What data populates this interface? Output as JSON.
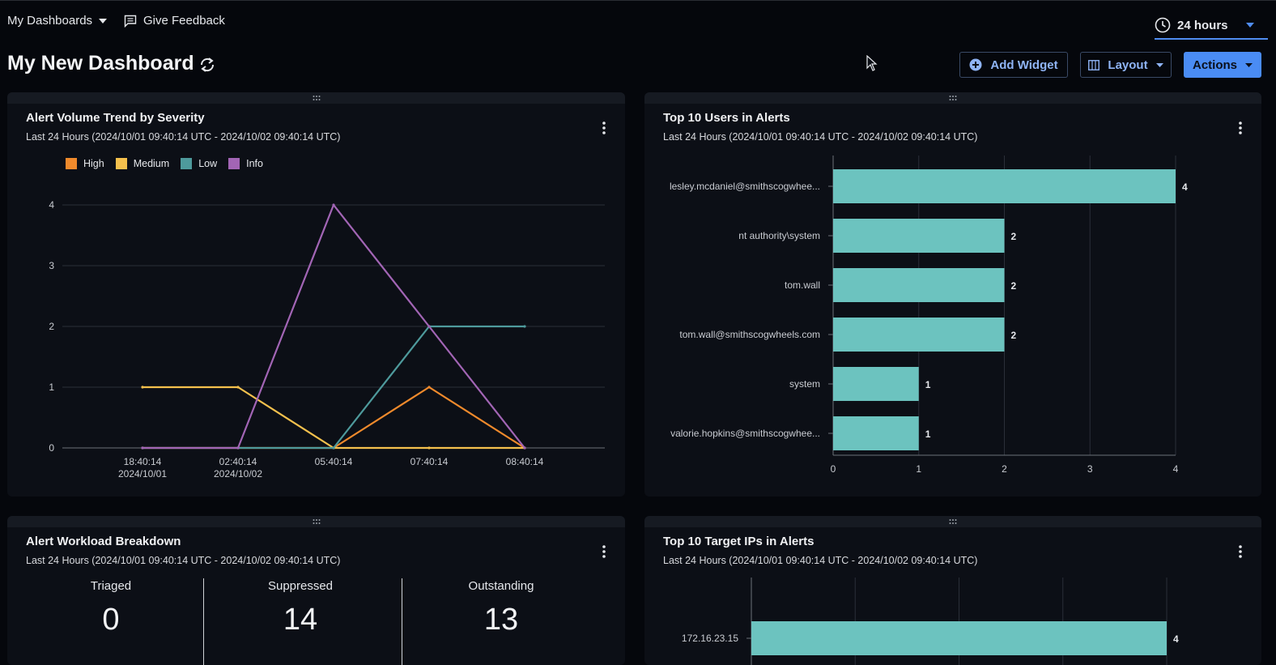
{
  "topbar": {
    "dashboards_label": "My Dashboards",
    "feedback_label": "Give Feedback",
    "time_range": "24 hours"
  },
  "page": {
    "title": "My New Dashboard"
  },
  "toolbar": {
    "add_widget": "Add Widget",
    "layout": "Layout",
    "actions": "Actions"
  },
  "colors": {
    "high": "#f08a2c",
    "medium": "#f5c14d",
    "low": "#4e9a9c",
    "info": "#a265b5",
    "bar": "#6cc3bf",
    "accent": "#4a8cf4"
  },
  "widgets": {
    "severity": {
      "title": "Alert Volume Trend by Severity",
      "subtitle": "Last 24 Hours (2024/10/01 09:40:14 UTC - 2024/10/02 09:40:14 UTC)",
      "legend": [
        "High",
        "Medium",
        "Low",
        "Info"
      ]
    },
    "users": {
      "title": "Top 10 Users in Alerts",
      "subtitle": "Last 24 Hours (2024/10/01 09:40:14 UTC - 2024/10/02 09:40:14 UTC)"
    },
    "workload": {
      "title": "Alert Workload Breakdown",
      "subtitle": "Last 24 Hours (2024/10/01 09:40:14 UTC - 2024/10/02 09:40:14 UTC)",
      "stats": [
        {
          "label": "Triaged",
          "value": "0"
        },
        {
          "label": "Suppressed",
          "value": "14"
        },
        {
          "label": "Outstanding",
          "value": "13"
        }
      ]
    },
    "ips": {
      "title": "Top 10 Target IPs in Alerts",
      "subtitle": "Last 24 Hours (2024/10/01 09:40:14 UTC - 2024/10/02 09:40:14 UTC)"
    }
  },
  "chart_data": [
    {
      "type": "line",
      "categories": [
        [
          "18:40:14",
          "2024/10/01"
        ],
        [
          "02:40:14",
          "2024/10/02"
        ],
        [
          "05:40:14",
          ""
        ],
        [
          "07:40:14",
          ""
        ],
        [
          "08:40:14",
          ""
        ]
      ],
      "ylim": [
        0,
        4
      ],
      "yticks": [
        0,
        1,
        2,
        3,
        4
      ],
      "grid": true,
      "legend_position": "top-left",
      "series": [
        {
          "name": "High",
          "values": [
            0,
            0,
            0,
            1,
            0
          ]
        },
        {
          "name": "Medium",
          "values": [
            1,
            1,
            0,
            0,
            0
          ]
        },
        {
          "name": "Low",
          "values": [
            0,
            0,
            0,
            2,
            2
          ]
        },
        {
          "name": "Info",
          "values": [
            0,
            0,
            4,
            2,
            0
          ]
        }
      ]
    },
    {
      "type": "bar",
      "orientation": "horizontal",
      "categories": [
        "lesley.mcdaniel@smithscogwhee...",
        "nt authority\\system",
        "tom.wall",
        "tom.wall@smithscogwheels.com",
        "system",
        "valorie.hopkins@smithscogwhee..."
      ],
      "values": [
        4,
        2,
        2,
        2,
        1,
        1
      ],
      "xlim": [
        0,
        4
      ],
      "xticks": [
        0,
        1,
        2,
        3,
        4
      ],
      "grid": true
    },
    {
      "type": "bar",
      "orientation": "horizontal",
      "categories": [
        "172.16.23.15"
      ],
      "values": [
        4
      ],
      "xlim": [
        0,
        4
      ],
      "grid": true
    }
  ]
}
